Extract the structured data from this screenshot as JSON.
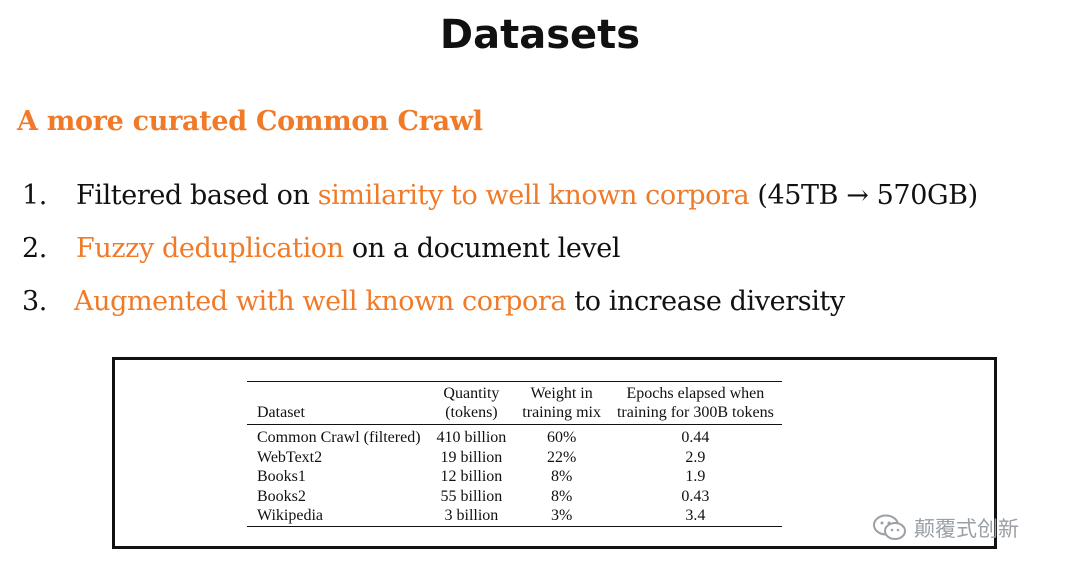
{
  "slide": {
    "title": "Datasets",
    "subtitle": "A more curated Common Crawl",
    "accent_color": "#f07a27"
  },
  "list": [
    {
      "num": "1.",
      "pre": "",
      "highlight": "similarity to well known corpora",
      "before_hl": "Filtered based on ",
      "post": " (45TB → 570GB)"
    },
    {
      "num": "2.",
      "before_hl": "",
      "highlight": "Fuzzy deduplication",
      "post": " on a document level"
    },
    {
      "num": "3.",
      "before_hl": "",
      "highlight": "Augmented with well known corpora",
      "post": " to increase diversity"
    }
  ],
  "table": {
    "headers": {
      "dataset": "Dataset",
      "quantity_1": "Quantity",
      "quantity_2": "(tokens)",
      "weight_1": "Weight in",
      "weight_2": "training mix",
      "epochs_1": "Epochs elapsed when",
      "epochs_2": "training for 300B tokens"
    },
    "rows": [
      {
        "dataset": "Common Crawl (filtered)",
        "quantity": "410 billion",
        "weight": "60%",
        "epochs": "0.44"
      },
      {
        "dataset": "WebText2",
        "quantity": "19 billion",
        "weight": "22%",
        "epochs": "2.9"
      },
      {
        "dataset": "Books1",
        "quantity": "12 billion",
        "weight": "8%",
        "epochs": "1.9"
      },
      {
        "dataset": "Books2",
        "quantity": "55 billion",
        "weight": "8%",
        "epochs": "0.43"
      },
      {
        "dataset": "Wikipedia",
        "quantity": "3 billion",
        "weight": "3%",
        "epochs": "3.4"
      }
    ]
  },
  "watermark": {
    "icon": "wechat-icon",
    "text": "颠覆式创新"
  }
}
